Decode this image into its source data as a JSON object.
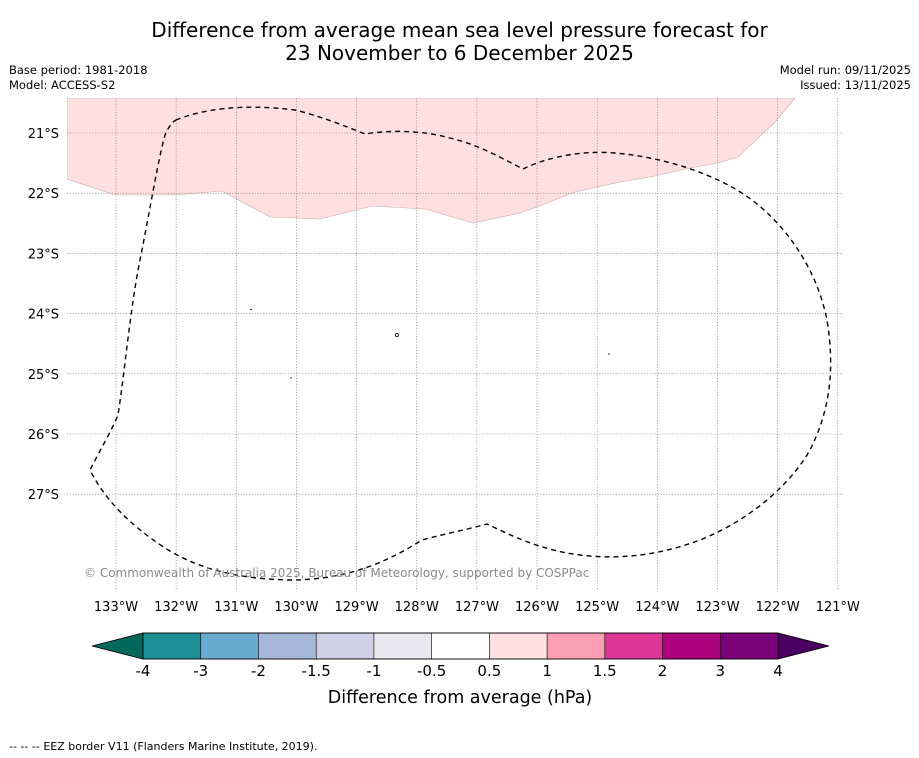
{
  "header": {
    "title_line1": "Difference from average mean sea level pressure forecast for",
    "title_line2": "23 November to 6 December 2025",
    "base_period": "Base period: 1981-2018",
    "model": "Model: ACCESS-S2",
    "model_run": "Model run: 09/11/2025",
    "issued": "Issued: 13/11/2025"
  },
  "map": {
    "lat_labels": [
      "21°S",
      "22°S",
      "23°S",
      "24°S",
      "25°S",
      "26°S",
      "27°S"
    ],
    "lon_labels": [
      "133°W",
      "132°W",
      "131°W",
      "130°W",
      "129°W",
      "128°W",
      "127°W",
      "126°W",
      "125°W",
      "124°W",
      "123°W",
      "122°W",
      "121°W"
    ],
    "copyright": "© Commonwealth of Australia 2025, Bureau of Meteorology, supported by COSPPac",
    "anomaly_fill_color": "#ffdfdf",
    "eez_line_color": "#000000"
  },
  "colorbar": {
    "label": "Difference from average (hPa)",
    "tick_labels": [
      "-4",
      "-3",
      "-2",
      "-1.5",
      "-1",
      "-0.5",
      "0.5",
      "1",
      "1.5",
      "2",
      "3",
      "4"
    ],
    "low_extend_color": "#00695c",
    "high_extend_color": "#4a0060",
    "colors": [
      "#1e9196",
      "#6aaad0",
      "#a6b8da",
      "#d0d0e6",
      "#e9e8ee",
      "#ffffff",
      "#ffdfdf",
      "#fa9fb4",
      "#dd3497",
      "#ae017e",
      "#7a0177"
    ]
  },
  "footer": {
    "legend_symbol": "-- -- --",
    "legend_text": "EEZ border V11 (Flanders Marine Institute, 2019)."
  }
}
